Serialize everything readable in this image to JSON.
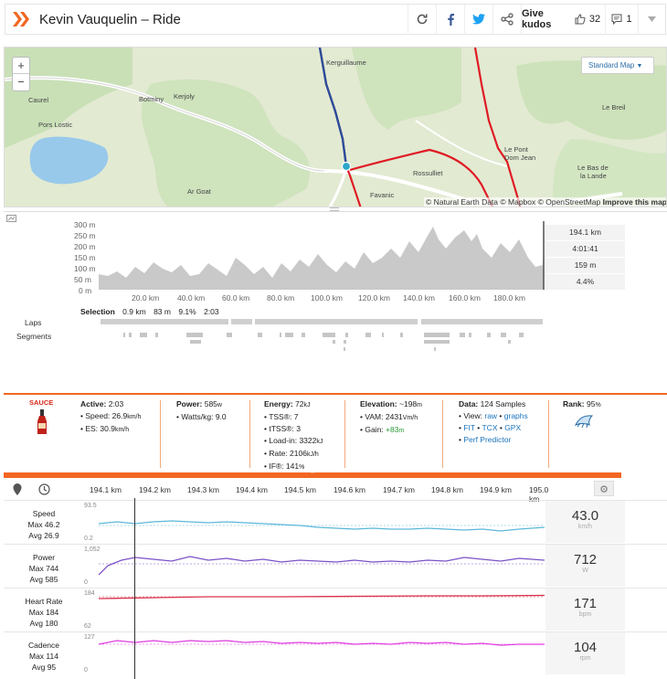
{
  "header": {
    "title": "Kevin Vauquelin – Ride",
    "kudos_label": "Give kudos",
    "kudos_count": "32",
    "comments_count": "1",
    "icons": [
      "refresh-icon",
      "facebook-icon",
      "twitter-icon",
      "share-icon",
      "thumbs-up-icon",
      "comment-icon",
      "chevron-down-icon"
    ]
  },
  "map": {
    "zoom_in": "+",
    "zoom_out": "−",
    "style_selector": "Standard Map",
    "attribution": "© Natural Earth Data © Mapbox © OpenStreetMap",
    "improve": "Improve this map",
    "places": {
      "kerguillaume": "Kerguillaume",
      "caurel": "Caurel",
      "botminy": "Botminy",
      "kerjoly": "Kerjoly",
      "pors_lostic": "Pors Lostic",
      "ar_goat": "Ar Goat",
      "rossulliet": "Rossulliet",
      "favanic": "Favanic",
      "le_breil": "Le Breil",
      "le_pont": "Le Pont",
      "dom_jean": "Dom Jean",
      "le_bas": "Le Bas de",
      "la_lande": "la Lande"
    }
  },
  "elevation": {
    "y_ticks": [
      "300 m",
      "250 m",
      "200 m",
      "150 m",
      "100 m",
      "50 m",
      "0 m"
    ],
    "x_ticks": [
      "20.0 km",
      "40.0 km",
      "60.0 km",
      "80.0 km",
      "100.0 km",
      "120.0 km",
      "140.0 km",
      "160.0 km",
      "180.0 km"
    ],
    "stats": [
      "194.1 km",
      "4:01:41",
      "159 m",
      "4.4%"
    ],
    "selection_label": "Selection",
    "selection_values": [
      "0.9 km",
      "83 m",
      "9.1%",
      "2:03"
    ],
    "laps_label": "Laps",
    "segments_label": "Segments"
  },
  "sauce": {
    "logo_text": "SAUCE",
    "active": {
      "title": "Active:",
      "value": "2:03",
      "speed_label": "Speed:",
      "speed_value": "26.9",
      "speed_unit": "km/h",
      "es_label": "ES:",
      "es_value": "30.9",
      "es_unit": "km/h"
    },
    "power": {
      "title": "Power:",
      "value": "585",
      "unit": "w",
      "wkg_label": "Watts/kg:",
      "wkg_value": "9.0"
    },
    "energy": {
      "title": "Energy:",
      "value": "72",
      "unit": "kJ",
      "tss_label": "TSS®:",
      "tss_value": "7",
      "ttss_label": "tTSS®:",
      "ttss_value": "3",
      "load_label": "Load-in:",
      "load_value": "3322",
      "load_unit": "kJ",
      "rate_label": "Rate:",
      "rate_value": "2106",
      "rate_unit": "kJ/h",
      "if_label": "IF®:",
      "if_value": "141",
      "if_unit": "%"
    },
    "elevation": {
      "title": "Elevation:",
      "value": "~198",
      "unit": "m",
      "vam_label": "VAM:",
      "vam_value": "2431",
      "vam_unit": "Vm/h",
      "gain_label": "Gain:",
      "gain_value": "+83",
      "gain_unit": "m"
    },
    "data": {
      "title": "Data:",
      "value": "124 Samples",
      "view_label": "View:",
      "raw": "raw",
      "graphs": "graphs",
      "fit": "FIT",
      "tcx": "TCX",
      "gpx": "GPX",
      "perf": "Perf Predictor"
    },
    "rank": {
      "title": "Rank:",
      "value": "95",
      "unit": "%"
    },
    "collapse": "⌃"
  },
  "streams": {
    "x_ticks": [
      "194.1 km",
      "194.2 km",
      "194.3 km",
      "194.4 km",
      "194.5 km",
      "194.6 km",
      "194.7 km",
      "194.8 km",
      "194.9 km",
      "195.0 km"
    ],
    "rows": [
      {
        "name": "Speed",
        "max": "Max 46.2",
        "avg": "Avg 26.9",
        "ymax": "93.5",
        "ymin": "0.2",
        "value": "43.0",
        "unit": "km/h"
      },
      {
        "name": "Power",
        "max": "Max 744",
        "avg": "Avg 585",
        "ymax": "1,052",
        "ymin": "0",
        "value": "712",
        "unit": "W"
      },
      {
        "name": "Heart Rate",
        "max": "Max 184",
        "avg": "Avg 180",
        "ymax": "184",
        "ymin": "62",
        "value": "171",
        "unit": "bpm"
      },
      {
        "name": "Cadence",
        "max": "Max 114",
        "avg": "Avg 95",
        "ymax": "127",
        "ymin": "0",
        "value": "104",
        "unit": "rpm"
      }
    ]
  },
  "colors": {
    "accent": "#f26722",
    "speed": "#5bb8d9",
    "power": "#7b52c8",
    "hr": "#d9304a",
    "cadence": "#e03ce0",
    "route": "#e01b24",
    "selection": "#2a4d9b"
  }
}
